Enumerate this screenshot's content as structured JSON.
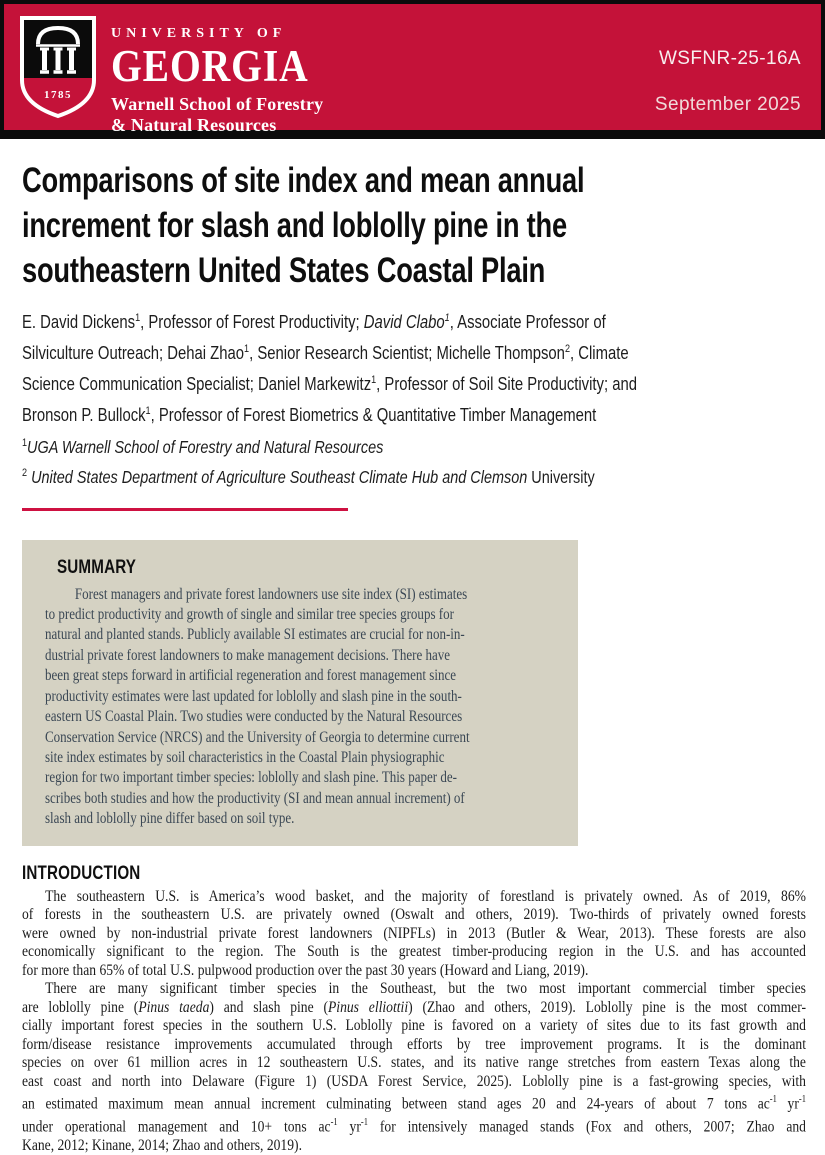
{
  "header": {
    "university_line": "UNIVERSITY OF",
    "university_name": "GEORGIA",
    "school_line1": "Warnell School of Forestry",
    "school_line2": "& Natural Resources",
    "doc_number": "WSFNR-25-16A",
    "date": "September 2025",
    "logo_year": "1785",
    "colors": {
      "red": "#C41239",
      "black": "#0b0b0b"
    }
  },
  "title": {
    "lines": [
      "Comparisons of site index and mean annual",
      "increment for slash and loblolly pine in the",
      "southeastern United States Coastal Plain"
    ]
  },
  "authors": {
    "lines_html": [
      "E. David Dickens<sup>1</sup>, Professor of Forest Productivity; <i>David Clabo<sup>1</sup></i>, Associate Professor of",
      "Silviculture Outreach; Dehai Zhao<sup>1</sup>, Senior Research Scientist; Michelle Thompson<sup>2</sup>, Climate",
      "Science Communication Specialist; Daniel Markewitz<sup>1</sup>, Professor of Soil Site Productivity; and",
      "Bronson P. Bullock<sup>1</sup>, Professor of Forest Biometrics &amp; Quantitative Timber Management"
    ]
  },
  "affiliations": {
    "lines_html": [
      "<sup>1</sup><i>UGA Warnell School of Forestry and Natural Resources</i>",
      "<sup>2</sup> <i>United States Department of Agriculture Southeast Climate Hub and Clemson</i> University"
    ]
  },
  "summary": {
    "heading": "SUMMARY",
    "bg_color": "#D5D2C3",
    "text_color": "#3A4754",
    "lines": [
      "Forest managers and private forest landowners use site index (SI) estimates",
      "to predict productivity and growth of single and similar tree species groups for",
      "natural and planted stands. Publicly available SI estimates are crucial for non-in-",
      "dustrial private forest landowners to make management decisions. There have",
      "been great steps forward in artificial regeneration and forest management since",
      "productivity estimates were last updated for loblolly and slash pine in the south-",
      "eastern US Coastal Plain. Two studies were conducted by the Natural Resources",
      "Conservation Service (NRCS) and the University of Georgia to determine current",
      "site index estimates by soil characteristics in the Coastal Plain physiographic",
      "region for two important timber species: loblolly and slash pine. This paper de-",
      "scribes both studies and how the productivity (SI and mean annual increment) of",
      "slash and loblolly pine differ based on soil type."
    ]
  },
  "introduction": {
    "heading": "INTRODUCTION",
    "paragraph1_lines_html": [
      "The southeastern U.S. is America’s wood basket, and the majority of forestland is privately owned. As of 2019, 86%",
      "of forests in the southeastern U.S. are privately owned (Oswalt and others, 2019). Two-thirds of privately owned forests",
      "were owned by non-industrial private forest landowners (NIPFLs) in 2013 (Butler &amp; Wear, 2013). These forests are also",
      "economically significant to the region. The South is the greatest timber-producing region in the U.S. and has accounted",
      "for more than 65% of total U.S. pulpwood production over the past 30 years (Howard and Liang, 2019)."
    ],
    "paragraph2_lines_html": [
      "There are many significant timber species in the Southeast, but the two most important commercial timber species",
      "are loblolly pine (<i>Pinus taeda</i>) and slash pine (<i>Pinus elliottii</i>) (Zhao and others, 2019). Loblolly pine is the most commer-",
      "cially important forest species in the southern U.S. Loblolly pine is favored on a variety of sites due to its fast growth and",
      "form/disease resistance improvements accumulated through efforts by tree improvement programs. It is the dominant",
      "species on over 61 million acres in 12 southeastern U.S. states, and its native range stretches from eastern Texas along the",
      "east coast and north into Delaware (Figure 1) (USDA Forest Service, 2025). Loblolly pine is a fast-growing species, with",
      "an estimated maximum mean annual increment culminating between stand ages 20 and 24-years of about 7 tons ac<sup>-1</sup> yr<sup>-1</sup>",
      "under operational management and 10+ tons ac<sup>-1</sup> yr<sup>-1</sup> for intensively managed stands (Fox and others, 2007; Zhao and",
      "Kane, 2012; Kinane, 2014; Zhao and others, 2019)."
    ]
  }
}
